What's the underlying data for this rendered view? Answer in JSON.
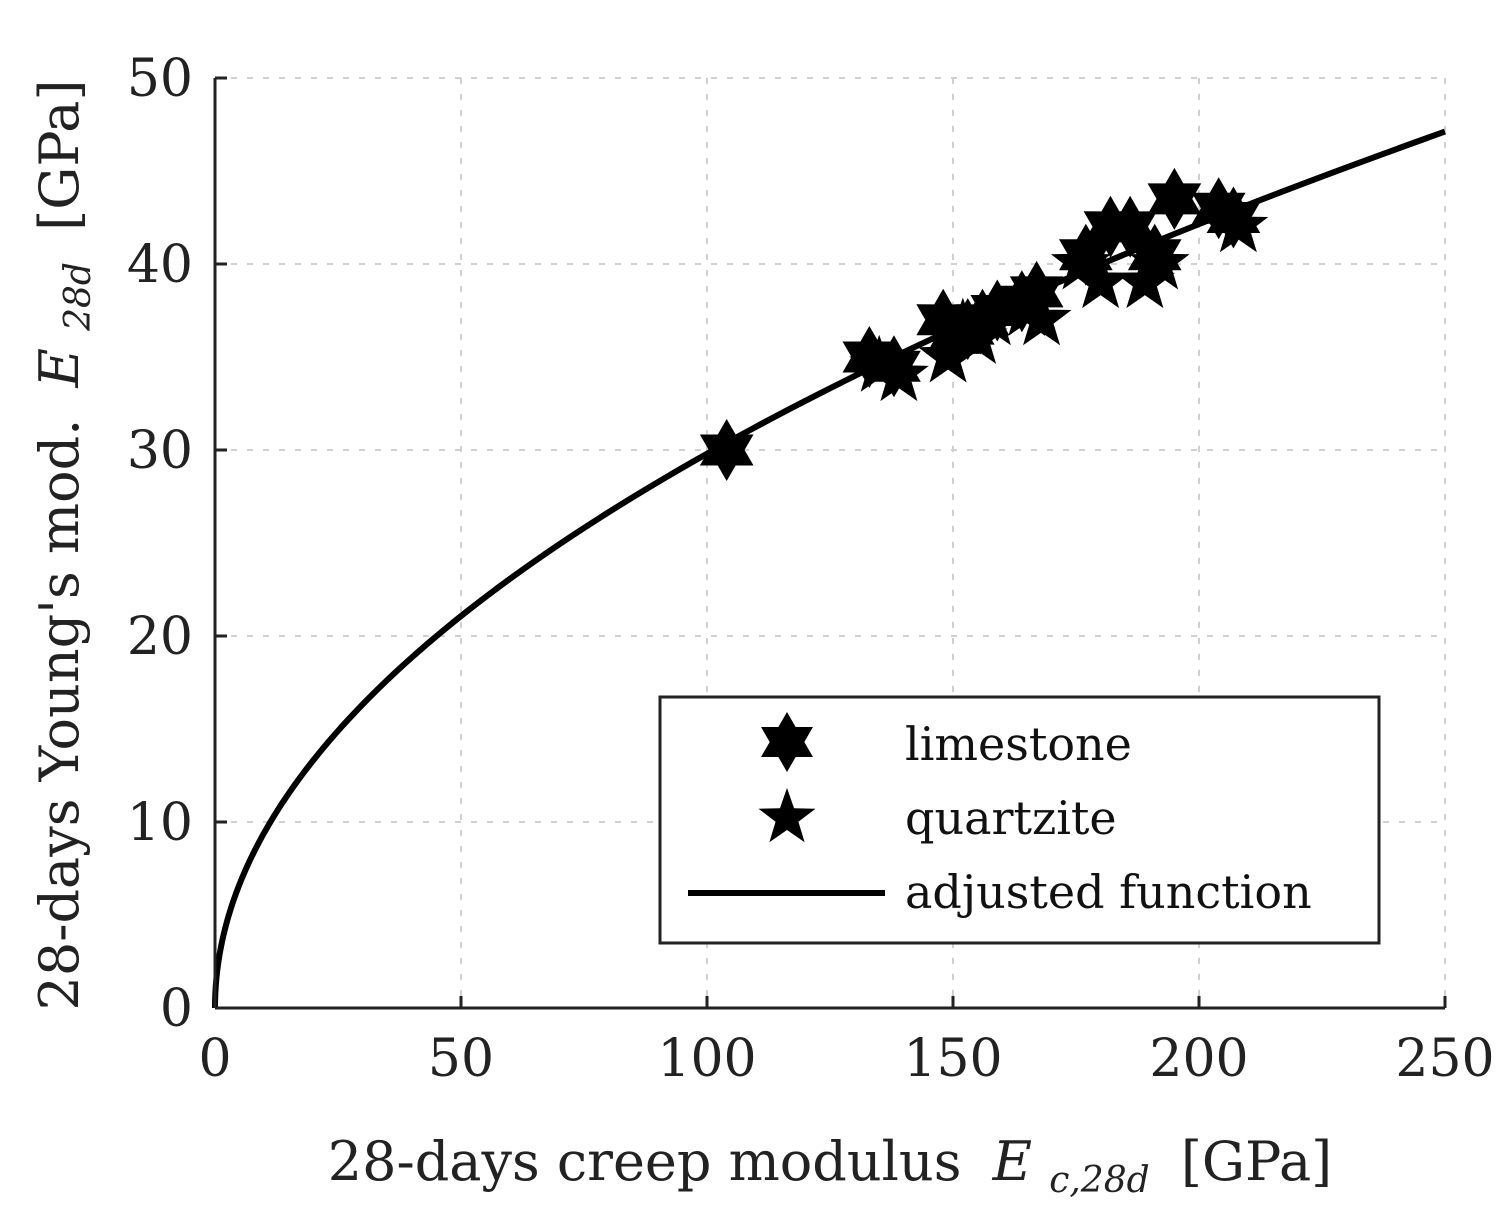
{
  "chart_data": {
    "type": "scatter",
    "xlabel": "28-days creep modulus",
    "xlabel_symbol": "E",
    "xlabel_subscript": "c,28d",
    "xlabel_unit": "[GPa]",
    "ylabel": "28-days Young's mod.",
    "ylabel_symbol": "E",
    "ylabel_subscript": "28d",
    "ylabel_unit": "[GPa]",
    "xlim": [
      0,
      250
    ],
    "ylim": [
      0,
      50
    ],
    "xticks": [
      0,
      50,
      100,
      150,
      200,
      250
    ],
    "yticks": [
      0,
      10,
      20,
      30,
      40,
      50
    ],
    "grid": true,
    "legend_position": "lower-right",
    "series": [
      {
        "name": "limestone",
        "marker": "hexagram",
        "points": [
          [
            104,
            30.0
          ],
          [
            133,
            35.0
          ],
          [
            138,
            34.5
          ],
          [
            148,
            37.0
          ],
          [
            150,
            36.0
          ],
          [
            153,
            36.5
          ],
          [
            156,
            37.0
          ],
          [
            159,
            37.5
          ],
          [
            164,
            38.0
          ],
          [
            167,
            38.5
          ],
          [
            177,
            40.5
          ],
          [
            182,
            42.0
          ],
          [
            186,
            42.0
          ],
          [
            191,
            40.5
          ],
          [
            195,
            43.5
          ],
          [
            204,
            43.0
          ],
          [
            207,
            42.5
          ]
        ]
      },
      {
        "name": "quartzite",
        "marker": "pentagram",
        "points": [
          [
            135,
            34.5
          ],
          [
            139,
            34.0
          ],
          [
            149,
            35.0
          ],
          [
            152,
            36.5
          ],
          [
            155,
            36.0
          ],
          [
            158,
            37.0
          ],
          [
            165,
            37.5
          ],
          [
            168,
            37.0
          ],
          [
            176,
            40.0
          ],
          [
            180,
            39.0
          ],
          [
            189,
            39.0
          ],
          [
            192,
            40.0
          ],
          [
            208,
            42.0
          ]
        ]
      },
      {
        "name": "adjusted function",
        "type": "line",
        "function": "2.98*x^0.5"
      }
    ]
  }
}
